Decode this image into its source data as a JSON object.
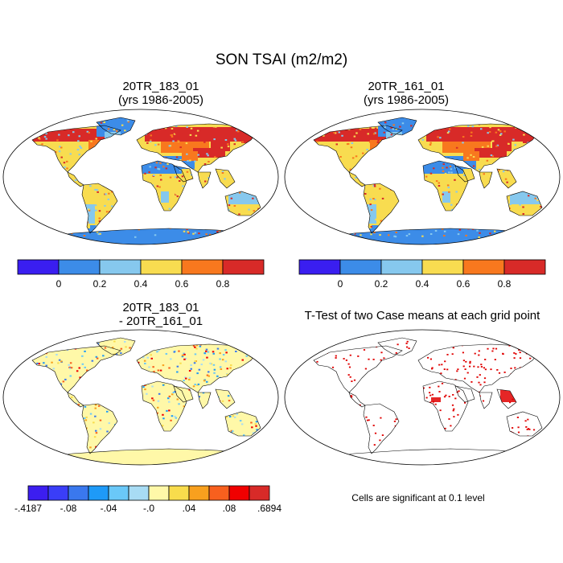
{
  "title": "SON TSAI (m2/m2)",
  "panels": [
    {
      "id": "p1",
      "title_line1": "20TR_183_01",
      "title_line2": "(yrs 1986-2005)",
      "kind": "absolute"
    },
    {
      "id": "p2",
      "title_line1": "20TR_161_01",
      "title_line2": "(yrs 1986-2005)",
      "kind": "absolute"
    },
    {
      "id": "p3",
      "title_line1": "20TR_183_01",
      "title_line2": "- 20TR_161_01",
      "kind": "difference"
    },
    {
      "id": "p4",
      "title_line1": "T-Test of two Case means at each grid point",
      "kind": "ttest"
    }
  ],
  "colorbar_abs": {
    "colors": [
      "#3a1ef0",
      "#3c8ce8",
      "#86c8ee",
      "#f8dc50",
      "#f8781e",
      "#d82a28"
    ],
    "labels": [
      "0",
      "0.2",
      "0.4",
      "0.6",
      "0.8"
    ]
  },
  "colorbar_diff": {
    "colors": [
      "#3c1ef0",
      "#3a3ef8",
      "#3a78ee",
      "#1e9af8",
      "#6ac8f8",
      "#a8dcf4",
      "#fff8a8",
      "#f8dc4c",
      "#f8a01e",
      "#f8601e",
      "#f00000",
      "#d82a28"
    ],
    "labels": [
      "-.4187",
      "-.08",
      "-.04",
      "-.0",
      ".04",
      ".08",
      ".6894"
    ]
  },
  "footnote": "Cells are significant at 0.1 level",
  "significance_color": "#e00000"
}
